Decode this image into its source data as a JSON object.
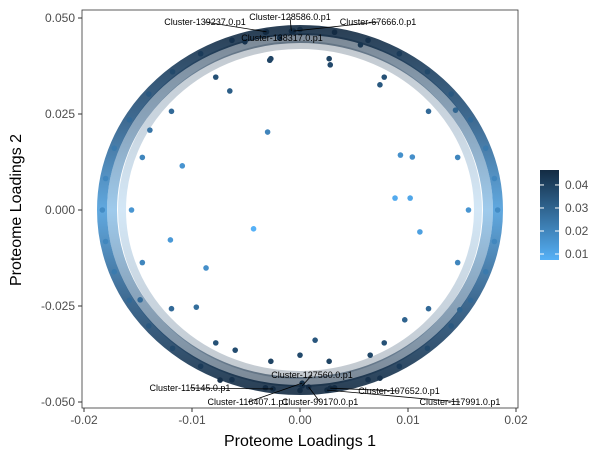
{
  "chart_data": {
    "type": "scatter",
    "xlabel": "Proteome Loadings 1",
    "ylabel": "Proteome Loadings 2",
    "xlim": [
      -0.02,
      0.02
    ],
    "ylim": [
      -0.05,
      0.05
    ],
    "xticks": [
      "-0.02",
      "-0.01",
      "0.00",
      "0.01",
      "0.02"
    ],
    "xtick_values": [
      -0.02,
      -0.01,
      0,
      0.01,
      0.02
    ],
    "yticks": [
      "0.050",
      "0.025",
      "0.000",
      "-0.025",
      "-0.050"
    ],
    "ytick_values": [
      0.05,
      0.025,
      0,
      -0.025,
      -0.05
    ],
    "grid": false,
    "legend": {
      "placement": "right",
      "ticks": [
        "0.04",
        "0.03",
        "0.02",
        "0.01"
      ],
      "tick_values": [
        0.04,
        0.03,
        0.02,
        0.01
      ],
      "range": [
        0.0074,
        0.0465
      ],
      "low_color": "#56B1F7",
      "high_color": "#132B43"
    },
    "points": [
      [
        0.0183,
        0
      ],
      [
        0.018,
        0.0082
      ],
      [
        0.0172,
        0.0161
      ],
      [
        0.0158,
        0.0235
      ],
      [
        0.014,
        0.0302
      ],
      [
        0.0118,
        0.036
      ],
      [
        0.0092,
        0.0407
      ],
      [
        0.0063,
        0.0442
      ],
      [
        0.0032,
        0.0463
      ],
      [
        0,
        0.047
      ],
      [
        -0.018,
        0.0082
      ],
      [
        -0.0172,
        0.0161
      ],
      [
        -0.0158,
        0.0235
      ],
      [
        -0.014,
        0.0302
      ],
      [
        -0.0118,
        0.036
      ],
      [
        -0.0092,
        0.0407
      ],
      [
        -0.0063,
        0.0442
      ],
      [
        -0.0032,
        0.0463
      ],
      [
        -0.0183,
        0
      ],
      [
        0.018,
        -0.0082
      ],
      [
        0.0172,
        -0.0161
      ],
      [
        0.0158,
        -0.0235
      ],
      [
        0.014,
        -0.0302
      ],
      [
        0.0118,
        -0.036
      ],
      [
        0.0092,
        -0.0407
      ],
      [
        0.0063,
        -0.0442
      ],
      [
        0.0032,
        -0.0463
      ],
      [
        0,
        -0.047
      ],
      [
        -0.018,
        -0.0082
      ],
      [
        -0.0172,
        -0.0161
      ],
      [
        -0.0158,
        -0.0235
      ],
      [
        -0.014,
        -0.0302
      ],
      [
        -0.0118,
        -0.036
      ],
      [
        -0.0092,
        -0.0407
      ],
      [
        -0.0063,
        -0.0442
      ],
      [
        -0.0032,
        -0.0463
      ],
      [
        0.0156,
        0
      ],
      [
        0.0146,
        0.0137
      ],
      [
        0.0119,
        0.0257
      ],
      [
        0.0078,
        0.0346
      ],
      [
        0.0027,
        0.0394
      ],
      [
        -0.0146,
        0.0137
      ],
      [
        -0.0119,
        0.0257
      ],
      [
        -0.0078,
        0.0346
      ],
      [
        -0.0027,
        0.0394
      ],
      [
        -0.0156,
        0
      ],
      [
        0.0146,
        -0.0137
      ],
      [
        0.0119,
        -0.0257
      ],
      [
        0.0078,
        -0.0346
      ],
      [
        0.0027,
        -0.0394
      ],
      [
        -0.0146,
        -0.0137
      ],
      [
        -0.0119,
        -0.0257
      ],
      [
        -0.0078,
        -0.0346
      ],
      [
        -0.0027,
        -0.0394
      ],
      [
        -0.003,
        0.0203
      ],
      [
        0.0104,
        0.0138
      ],
      [
        -0.0043,
        -0.0049
      ],
      [
        -0.012,
        -0.0078
      ],
      [
        0.0088,
        0.0031
      ],
      [
        0.0102,
        0.0031
      ],
      [
        -0.0087,
        -0.0151
      ],
      [
        -0.0109,
        0.0115
      ],
      [
        0.0111,
        -0.0057
      ],
      [
        0.0093,
        0.0143
      ],
      [
        -0.0096,
        -0.0253
      ],
      [
        0.0097,
        -0.0286
      ],
      [
        0,
        -0.0378
      ],
      [
        0.0014,
        -0.0339
      ],
      [
        -0.0028,
        0.039
      ],
      [
        0.0028,
        0.0378
      ],
      [
        -0.0065,
        0.031
      ],
      [
        0.0074,
        0.0326
      ],
      [
        -0.0139,
        0.0208
      ],
      [
        0.0144,
        0.026
      ],
      [
        -0.0148,
        -0.0234
      ],
      [
        0.0148,
        -0.026
      ],
      [
        -0.006,
        -0.0365
      ],
      [
        0.0065,
        -0.0378
      ],
      [
        -0.0074,
        -0.0443
      ],
      [
        0.0074,
        -0.0438
      ],
      [
        -0.0051,
        0.0438
      ],
      [
        0.0056,
        0.043
      ]
    ],
    "labeled_points": [
      {
        "label": "Cluster-128586.0.p1",
        "x": -0.0008,
        "y": 0.0466
      },
      {
        "label": "Cluster-139237.0.p1",
        "x": -0.0031,
        "y": 0.0464
      },
      {
        "label": "Cluster-67666.0.p1",
        "x": -0.0006,
        "y": 0.0466
      },
      {
        "label": "Cluster-138317.0.p1",
        "x": -0.0019,
        "y": 0.0448
      },
      {
        "label": "Cluster-127560.0.p1",
        "x": 0.0002,
        "y": -0.0458
      },
      {
        "label": "Cluster-115145.0.p1",
        "x": -0.0025,
        "y": -0.0466
      },
      {
        "label": "Cluster-107652.0.p1",
        "x": 0.0028,
        "y": -0.0464
      },
      {
        "label": "Cluster-116407.1.p1",
        "x": 0.0002,
        "y": -0.0451
      },
      {
        "label": "Cluster-99170.0.p1",
        "x": 0.0008,
        "y": -0.0461
      },
      {
        "label": "Cluster-117991.0.p1",
        "x": 0.0025,
        "y": -0.0469
      }
    ]
  }
}
